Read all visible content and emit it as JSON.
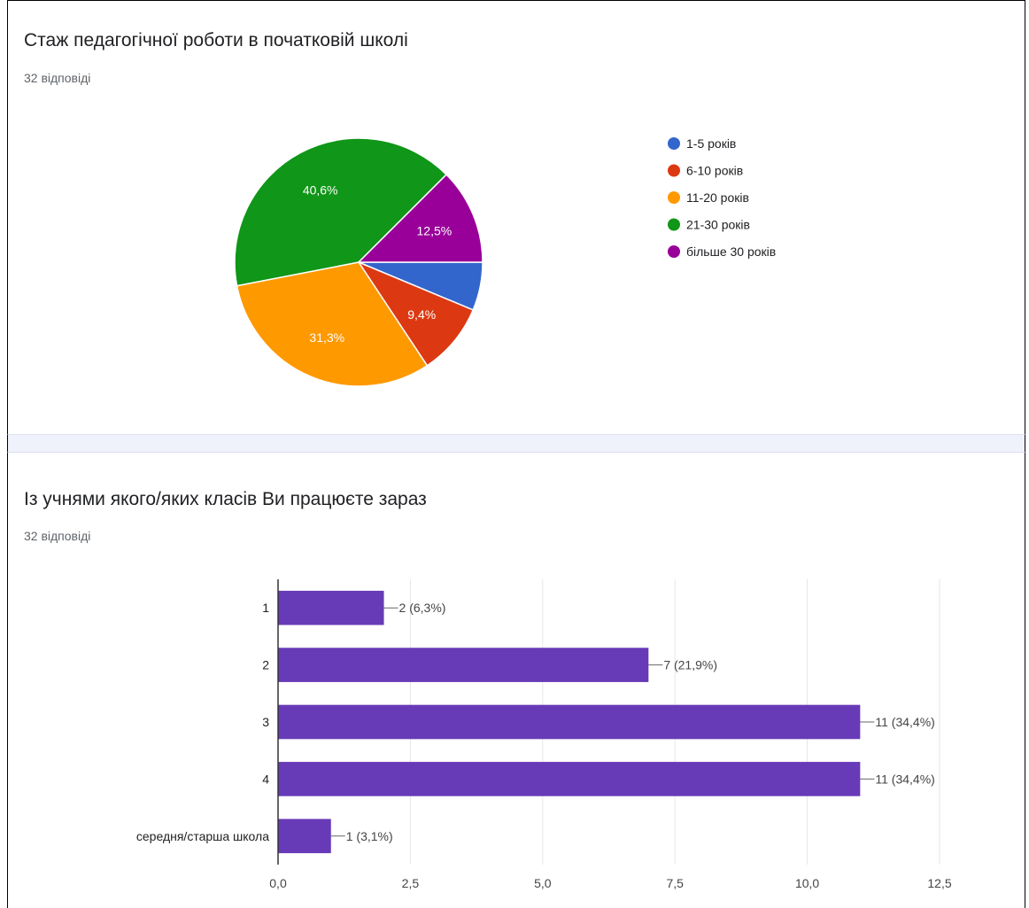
{
  "cards": [
    {
      "title": "Стаж педагогічної роботи в початковій школі",
      "subtitle": "32 відповіді"
    },
    {
      "title": "Із учнями якого/яких класів Ви працюєте зараз",
      "subtitle": "32 відповіді"
    }
  ],
  "chart_data": [
    {
      "type": "pie",
      "title": "Стаж педагогічної роботи в початковій школі",
      "legend_position": "right",
      "slices": [
        {
          "label": "1-5 років",
          "value": 6.3,
          "data_label": "",
          "color": "#3366cc"
        },
        {
          "label": "6-10 років",
          "value": 9.4,
          "data_label": "9,4%",
          "color": "#dc3912"
        },
        {
          "label": "11-20 років",
          "value": 31.3,
          "data_label": "31,3%",
          "color": "#ff9900"
        },
        {
          "label": "21-30 років",
          "value": 40.6,
          "data_label": "40,6%",
          "color": "#109618"
        },
        {
          "label": "більше 30 років",
          "value": 12.5,
          "data_label": "12,5%",
          "color": "#990099"
        }
      ]
    },
    {
      "type": "bar",
      "orientation": "horizontal",
      "title": "Із учнями якого/яких класів Ви працюєте зараз",
      "categories": [
        "1",
        "2",
        "3",
        "4",
        "середня/старша школа"
      ],
      "values": [
        2,
        7,
        11,
        11,
        1
      ],
      "data_labels": [
        "2 (6,3%)",
        "7 (21,9%)",
        "11 (34,4%)",
        "11 (34,4%)",
        "1 (3,1%)"
      ],
      "xlim": [
        0,
        12.5
      ],
      "ticks": [
        0,
        2.5,
        5,
        7.5,
        10,
        12.5
      ],
      "tick_labels": [
        "0,0",
        "2,5",
        "5,0",
        "7,5",
        "10,0",
        "12,5"
      ],
      "bar_color": "#673ab7",
      "grid": true
    }
  ]
}
